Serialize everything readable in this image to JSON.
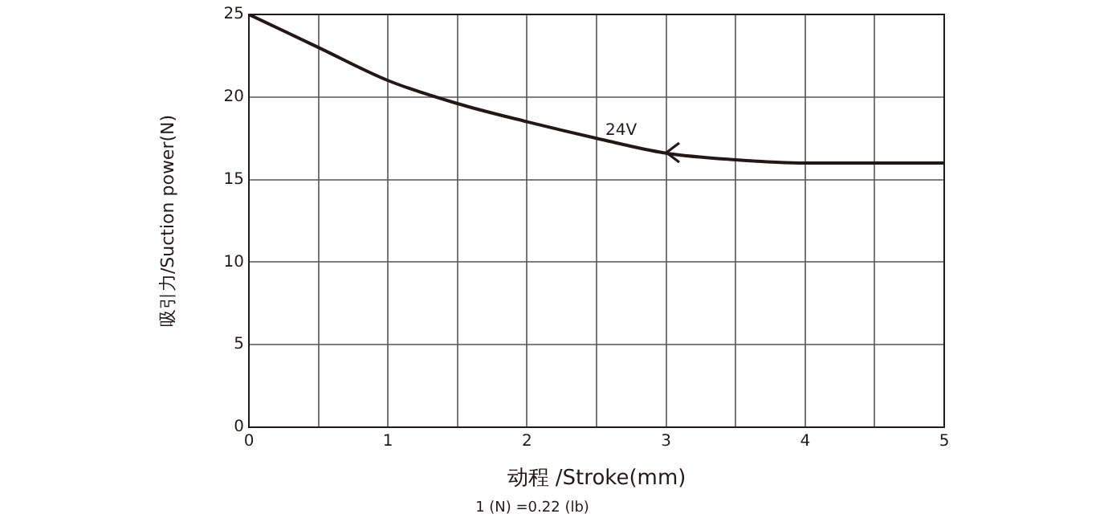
{
  "chart_data": {
    "type": "line",
    "xlabel": "动程 /Stroke(mm)",
    "ylabel": "吸引力/Suction power(N)",
    "x": [
      0,
      0.5,
      1,
      1.5,
      2,
      2.5,
      3,
      3.5,
      4,
      4.5,
      5
    ],
    "series": [
      {
        "name": "24V",
        "color": "#231815",
        "values": [
          25,
          23,
          21,
          19.6,
          18.5,
          17.5,
          16.6,
          16.2,
          16,
          16,
          16
        ]
      }
    ],
    "xlim": [
      0,
      5
    ],
    "xticks": [
      0,
      {
        "value": 0.5,
        "label": null
      },
      1,
      {
        "value": 1.5,
        "label": null
      },
      2,
      {
        "value": 2.5,
        "label": null
      },
      3,
      {
        "value": 3.5,
        "label": null
      },
      4,
      {
        "value": 4.5,
        "label": null
      },
      5
    ],
    "ylim": [
      0,
      25
    ],
    "yticks": [
      0,
      5,
      10,
      15,
      20,
      25
    ],
    "grid": true,
    "legend": false,
    "marker": "none",
    "line_style": "solid",
    "annotations": [
      "1 (N) =0.22 (lb)"
    ]
  }
}
